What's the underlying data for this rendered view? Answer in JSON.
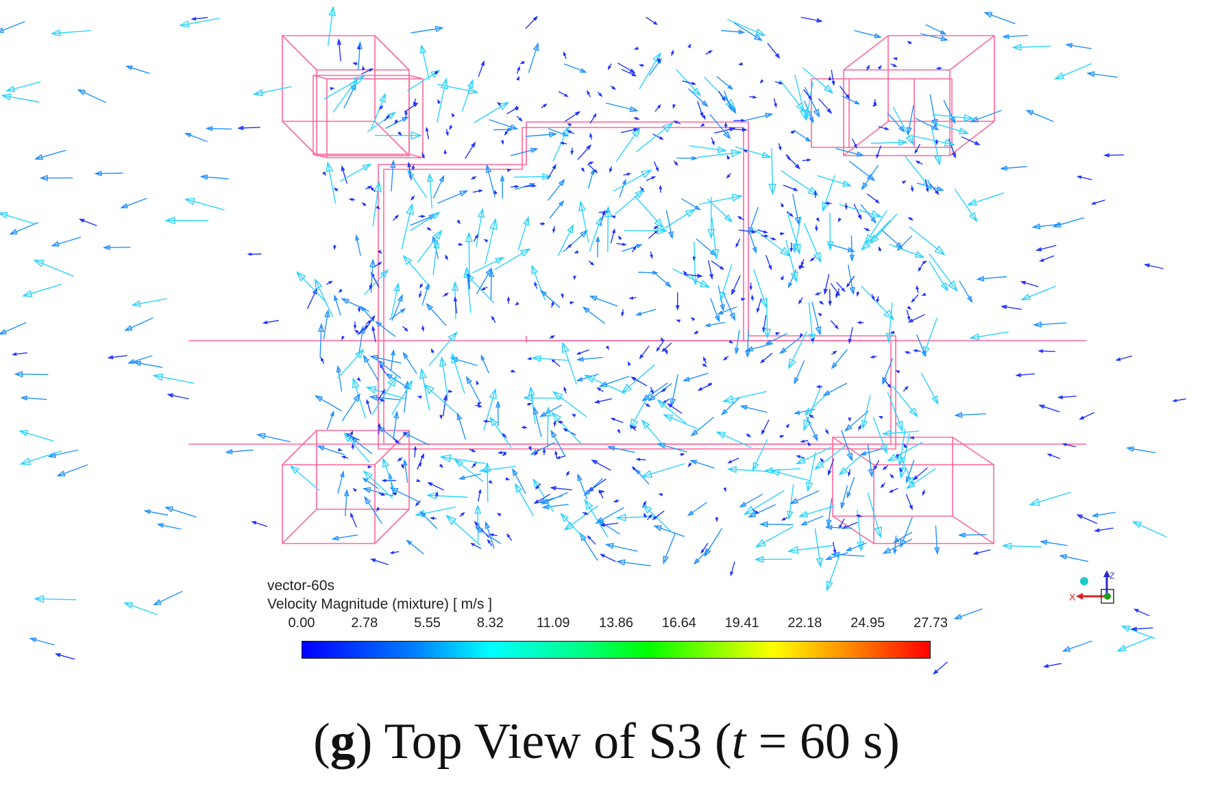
{
  "legend": {
    "name": "vector-60s",
    "variable": "Velocity Magnitude (mixture)",
    "unit": "[ m/s ]",
    "ticks": [
      "0.00",
      "2.78",
      "5.55",
      "8.32",
      "11.09",
      "13.86",
      "16.64",
      "19.41",
      "22.18",
      "24.95",
      "27.73"
    ]
  },
  "axes_triad": {
    "x_label": "X",
    "z_label": "Z"
  },
  "caption": {
    "letter": "g",
    "text": "Top View of S3",
    "param_open": "(",
    "param_var": "t",
    "param_rest": "= 60 s)"
  },
  "colors": {
    "structure": "#ff6699",
    "vector_slow": "#1e32ff",
    "vector_medium": "#1e90ff",
    "vector_fast": "#28d2ff"
  }
}
